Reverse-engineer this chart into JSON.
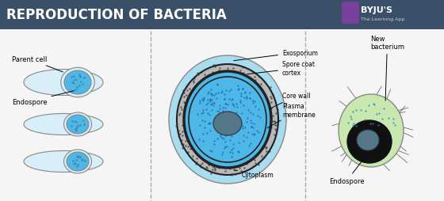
{
  "title": "REPRODUCTION OF BACTERIA",
  "title_bg": "#3a5068",
  "title_color": "#ffffff",
  "bg_color": "#f5f5f5",
  "byju_icon_color": "#7b3f9e",
  "left_labels": [
    "Parent cell",
    "Endospore"
  ],
  "divider_color": "#aaaaaa",
  "cell_outline_color": "#888888",
  "cell_bg_color": "#d8eef8",
  "endospore_color": "#4db8e8",
  "dot_color": "#4488aa",
  "exosporium_color": "#a8ddf0",
  "spore_coat_color": "#b8b8b8",
  "core_wall_color": "#222222",
  "plasma_color": "#4db8e8",
  "nucleoid_color": "#557788",
  "new_bact_color": "#c8e8b0",
  "new_bact_dark": "#111111",
  "flagella_color": "#555555"
}
